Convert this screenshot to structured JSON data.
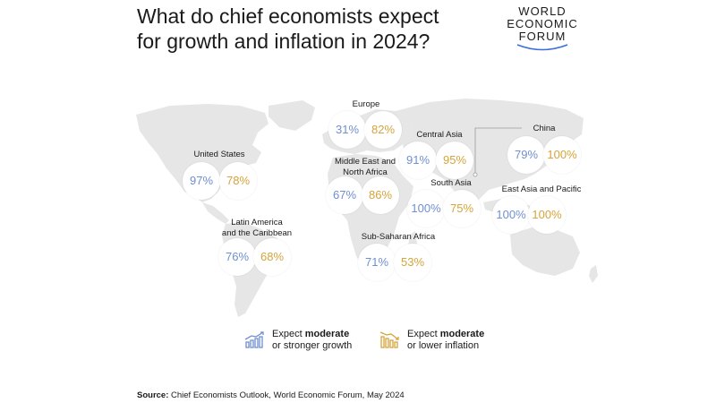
{
  "title_line1": "What do chief economists expect",
  "title_line2": "for growth and inflation in 2024?",
  "logo": {
    "line1": "WORLD",
    "line2": "ECONOMIC",
    "line3": "FORUM"
  },
  "colors": {
    "growth": "#6f8fd3",
    "inflation": "#d6a43a",
    "land": "#e6e6e6"
  },
  "regions": {
    "us": {
      "label": "United States",
      "growth": "97%",
      "inflation": "78%"
    },
    "latam": {
      "label_line1": "Latin America",
      "label_line2": "and the Caribbean",
      "growth": "76%",
      "inflation": "68%"
    },
    "europe": {
      "label": "Europe",
      "growth": "31%",
      "inflation": "82%"
    },
    "mena": {
      "label_line1": "Middle East and",
      "label_line2": "North Africa",
      "growth": "67%",
      "inflation": "86%"
    },
    "central_asia": {
      "label": "Central Asia",
      "growth": "91%",
      "inflation": "95%"
    },
    "south_asia": {
      "label": "South Asia",
      "growth": "100%",
      "inflation": "75%"
    },
    "china": {
      "label": "China",
      "growth": "79%",
      "inflation": "100%"
    },
    "eap": {
      "label": "East Asia and Pacific",
      "growth": "100%",
      "inflation": "100%"
    },
    "ssa": {
      "label": "Sub-Saharan Africa",
      "growth": "71%",
      "inflation": "53%"
    }
  },
  "legend": {
    "growth_pre": "Expect ",
    "growth_bold": "moderate",
    "growth_line2": "or stronger growth",
    "inflation_pre": "Expect ",
    "inflation_bold": "moderate",
    "inflation_line2": "or lower inflation",
    "growth_icon": "rising-bars-icon",
    "inflation_icon": "falling-bars-icon"
  },
  "source": {
    "label": "Source:",
    "text": " Chief Economists Outlook, World Economic Forum, May 2024"
  }
}
